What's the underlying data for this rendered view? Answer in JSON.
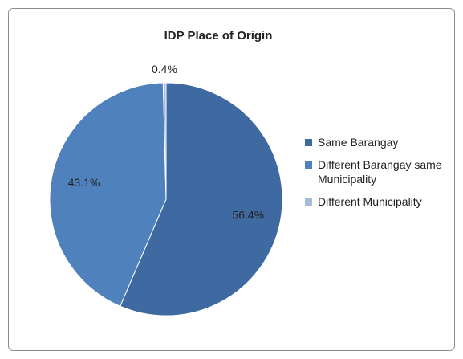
{
  "chart_data": {
    "type": "pie",
    "title": "IDP Place of Origin",
    "categories": [
      "Same Barangay",
      "Different Barangay same Municipality",
      "Different Municipality"
    ],
    "values": [
      56.4,
      43.1,
      0.4
    ],
    "value_labels": [
      "56.4%",
      "43.1%",
      "0.4%"
    ],
    "colors": [
      "#3e6aa1",
      "#4f81bd",
      "#a7bcdb"
    ],
    "legend": "right"
  }
}
